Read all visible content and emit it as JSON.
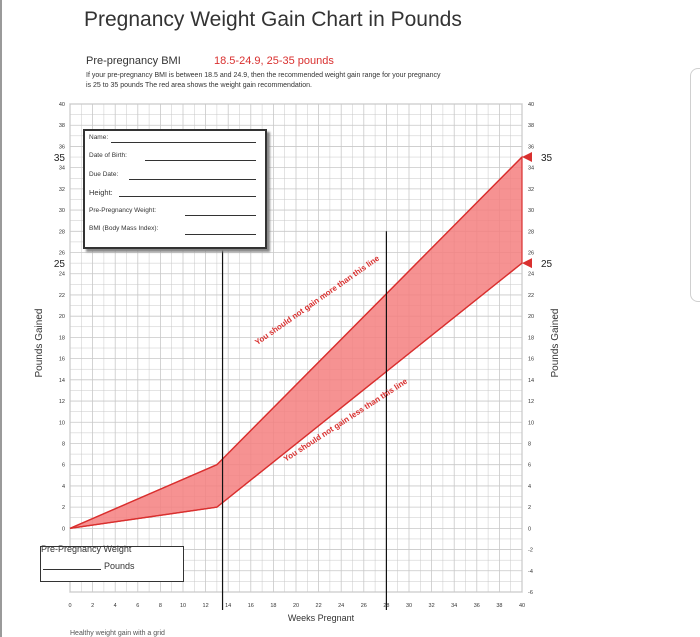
{
  "page": {
    "title": "Pregnancy Weight Gain Chart in Pounds",
    "bmi_label": "Pre-pregnancy BMI",
    "bmi_range": "18.5-24.9, 25-35 pounds",
    "description": "If your pre-pregnancy BMI is between 18.5 and 24.9, then the recommended weight gain range for your pregnancy is 25 to 35 pounds The red area shows the weight gain recommendation.",
    "footer_text": "Healthy weight gain with a grid"
  },
  "form": {
    "name_label": "Name:",
    "dob_label": "Date of Birth:",
    "due_label": "Due Date:",
    "height_label": "Height:",
    "prepreg_label": "Pre-Pregnancy Weight:",
    "bmi_label": "BMI (Body Mass Index):"
  },
  "prepreg_box": {
    "title": "Pre-Pregnancy Weight",
    "units": "Pounds"
  },
  "colors": {
    "band_fill": "#f47f7f",
    "band_edge": "#d9302f",
    "grid": "#c8c8c8",
    "text_red": "#d9302f"
  },
  "chart_data": {
    "type": "area",
    "xlabel": "Weeks Pregnant",
    "ylabel_left": "Pounds Gained",
    "ylabel_right": "Pounds Gained",
    "xlim": [
      0,
      40
    ],
    "ylim": [
      -6,
      40
    ],
    "x_ticks": [
      0,
      2,
      4,
      6,
      8,
      10,
      12,
      14,
      16,
      18,
      20,
      22,
      24,
      26,
      28,
      30,
      32,
      34,
      36,
      38,
      40
    ],
    "y_ticks": [
      -6,
      -4,
      -2,
      0,
      2,
      4,
      6,
      8,
      10,
      12,
      14,
      16,
      18,
      20,
      22,
      24,
      26,
      28,
      30,
      32,
      34,
      36,
      38,
      40
    ],
    "x_tick_labels": [
      "0",
      "2",
      "4",
      "6",
      "8",
      "10",
      "12",
      "14",
      "16",
      "18",
      "20",
      "22",
      "24",
      "26",
      "28",
      "30",
      "32",
      "34",
      "36",
      "38",
      "40"
    ],
    "y_tick_labels_left": [
      "40",
      "38",
      "36",
      "34",
      "32",
      "30",
      "28",
      "26",
      "24",
      "22",
      "20",
      "18",
      "16",
      "14",
      "12",
      "10",
      "8",
      "6",
      "4",
      "2",
      "0"
    ],
    "y_tick_labels_right": [
      "40",
      "38",
      "36",
      "34",
      "32",
      "30",
      "28",
      "26",
      "24",
      "22",
      "20",
      "18",
      "16",
      "14",
      "12",
      "10",
      "8",
      "6",
      "4",
      "2",
      "0",
      "-2",
      "-4",
      "-6"
    ],
    "series": [
      {
        "points": [
          [
            0,
            0
          ],
          [
            13,
            6
          ],
          [
            40,
            35
          ]
        ]
      },
      {
        "points": [
          [
            0,
            0
          ],
          [
            13,
            2
          ],
          [
            40,
            25
          ]
        ]
      }
    ],
    "highlight_values": [
      {
        "value": 35,
        "label": "35"
      },
      {
        "value": 25,
        "label": "25"
      }
    ],
    "vertical_markers": [
      13.5,
      28
    ],
    "annotations": [
      {
        "text": "You should not gain more than this line"
      },
      {
        "text": "You should not gain less than this line"
      }
    ],
    "grid": true
  }
}
